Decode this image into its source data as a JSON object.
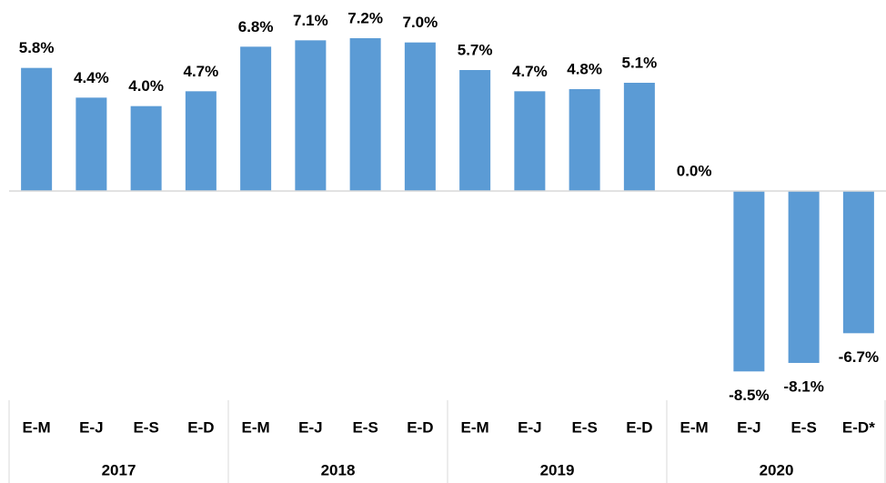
{
  "chart_data": {
    "type": "bar",
    "categories": [
      "E-M",
      "E-J",
      "E-S",
      "E-D",
      "E-M",
      "E-J",
      "E-S",
      "E-D",
      "E-M",
      "E-J",
      "E-S",
      "E-D",
      "E-M",
      "E-J",
      "E-S",
      "E-D*"
    ],
    "groups": [
      "2017",
      "2018",
      "2019",
      "2020"
    ],
    "values": [
      5.8,
      4.4,
      4.0,
      4.7,
      6.8,
      7.1,
      7.2,
      7.0,
      5.7,
      4.7,
      4.8,
      5.1,
      0.0,
      -8.5,
      -8.1,
      -6.7
    ],
    "value_labels": [
      "5.8%",
      "4.4%",
      "4.0%",
      "4.7%",
      "6.8%",
      "7.1%",
      "7.2%",
      "7.0%",
      "5.7%",
      "4.7%",
      "4.8%",
      "5.1%",
      "0.0%",
      "-8.5%",
      "-8.1%",
      "-6.7%"
    ],
    "color": "#5b9bd5"
  }
}
